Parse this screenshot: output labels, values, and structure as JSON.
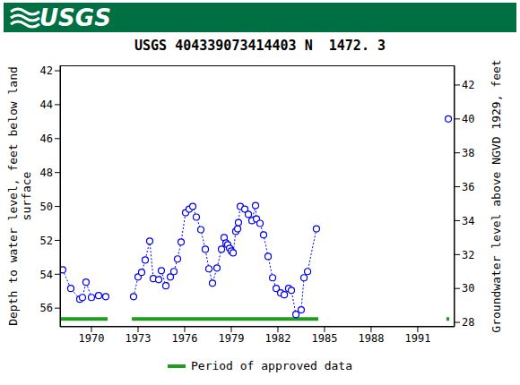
{
  "chart_data": {
    "type": "line",
    "header": "USGS",
    "title": "USGS 404339073414403 N  1472. 3",
    "y_label": "Depth to water level, feet below land\nsurface",
    "y2_label": "Groundwater level above NGVD 1929, feet",
    "x": [
      1968.15,
      1968.67,
      1969.25,
      1969.42,
      1969.65,
      1970.0,
      1970.46,
      1970.92,
      1971.8,
      1972.71,
      1973.0,
      1973.23,
      1973.46,
      1973.75,
      1973.98,
      1974.33,
      1974.5,
      1974.79,
      1975.08,
      1975.31,
      1975.54,
      1975.77,
      1976.06,
      1976.29,
      1976.52,
      1976.75,
      1977.04,
      1977.33,
      1977.56,
      1977.79,
      1978.08,
      1978.37,
      1978.54,
      1978.66,
      1978.77,
      1978.89,
      1979.0,
      1979.12,
      1979.29,
      1979.41,
      1979.46,
      1979.58,
      1979.87,
      1980.1,
      1980.33,
      1980.56,
      1980.62,
      1980.85,
      1981.08,
      1981.37,
      1981.66,
      1981.89,
      1982.18,
      1982.41,
      1982.69,
      1982.87,
      1983.16,
      1983.5,
      1983.68,
      1983.91,
      1984.48,
      1988.7,
      1992.97
    ],
    "values": [
      53.74,
      54.84,
      55.47,
      55.37,
      54.47,
      55.37,
      55.26,
      55.32,
      null,
      55.32,
      54.16,
      53.89,
      53.16,
      52.05,
      54.26,
      54.32,
      53.79,
      54.68,
      54.16,
      53.84,
      53.1,
      52.1,
      50.37,
      50.16,
      50.0,
      50.63,
      51.37,
      52.53,
      53.68,
      54.53,
      53.63,
      52.53,
      51.84,
      52.16,
      52.26,
      52.47,
      52.63,
      52.74,
      51.47,
      51.32,
      50.95,
      50.0,
      50.16,
      50.47,
      50.84,
      49.95,
      50.74,
      51.0,
      51.68,
      52.95,
      54.21,
      54.84,
      55.1,
      55.21,
      54.84,
      54.95,
      56.37,
      56.1,
      54.21,
      53.84,
      51.32,
      null,
      44.84
    ],
    "color": "#0000ee",
    "marker": "circle",
    "line_style": "dotted",
    "xlim": [
      1967.98,
      1993.37
    ],
    "xticks": [
      1970,
      1973,
      1976,
      1979,
      1982,
      1985,
      1988,
      1991
    ],
    "ylim": [
      41.68,
      57.1
    ],
    "yticks": [
      42,
      44,
      46,
      48,
      50,
      52,
      54,
      56
    ],
    "y2lim": [
      27.74,
      43.16
    ],
    "y2ticks": [
      28,
      30,
      32,
      34,
      36,
      38,
      40,
      42
    ],
    "approved": {
      "name": "Period of approved data",
      "color": "#1e9e1e",
      "periods": [
        [
          1968.04,
          1971.04
        ],
        [
          1972.6,
          1984.6
        ],
        [
          1992.85,
          1993.03
        ]
      ]
    }
  }
}
